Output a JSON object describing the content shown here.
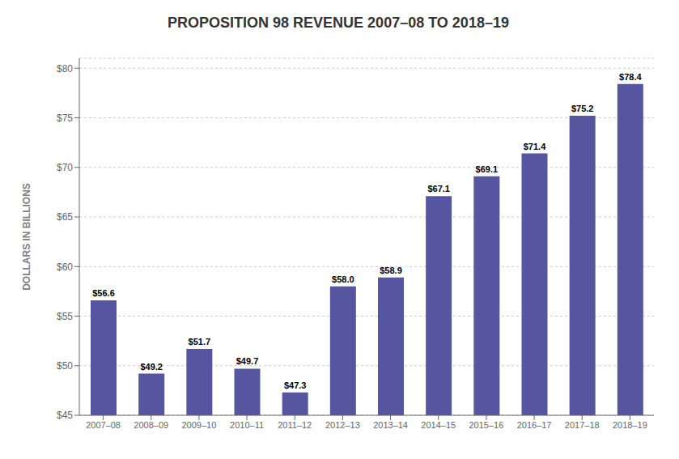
{
  "chart_data": {
    "type": "bar",
    "title": "PROPOSITION 98 REVENUE 2007–08 TO 2018–19",
    "ylabel": "DOLLARS IN BILLIONS",
    "categories": [
      "2007–08",
      "2008–09",
      "2009–10",
      "2010–11",
      "2011–12",
      "2012–13",
      "2013–14",
      "2014–15",
      "2015–16",
      "2016–17",
      "2017–18",
      "2018–19"
    ],
    "values": [
      56.6,
      49.2,
      51.7,
      49.7,
      47.3,
      58.0,
      58.9,
      67.1,
      69.1,
      71.4,
      75.2,
      78.4
    ],
    "value_labels": [
      "$56.6",
      "$49.2",
      "$51.7",
      "$49.7",
      "$47.3",
      "$58.0",
      "$58.9",
      "$67.1",
      "$69.1",
      "$71.4",
      "$75.2",
      "$78.4"
    ],
    "data_labels": true,
    "color": "#5656a0",
    "ylim": [
      45,
      81
    ],
    "yticks": [
      {
        "value": 45,
        "label": "$45"
      },
      {
        "value": 50,
        "label": "$50"
      },
      {
        "value": 55,
        "label": "$55"
      },
      {
        "value": 60,
        "label": "$60"
      },
      {
        "value": 65,
        "label": "$65"
      },
      {
        "value": 70,
        "label": "$70"
      },
      {
        "value": 75,
        "label": "$75"
      },
      {
        "value": 80,
        "label": "$80"
      }
    ],
    "grid": true
  }
}
